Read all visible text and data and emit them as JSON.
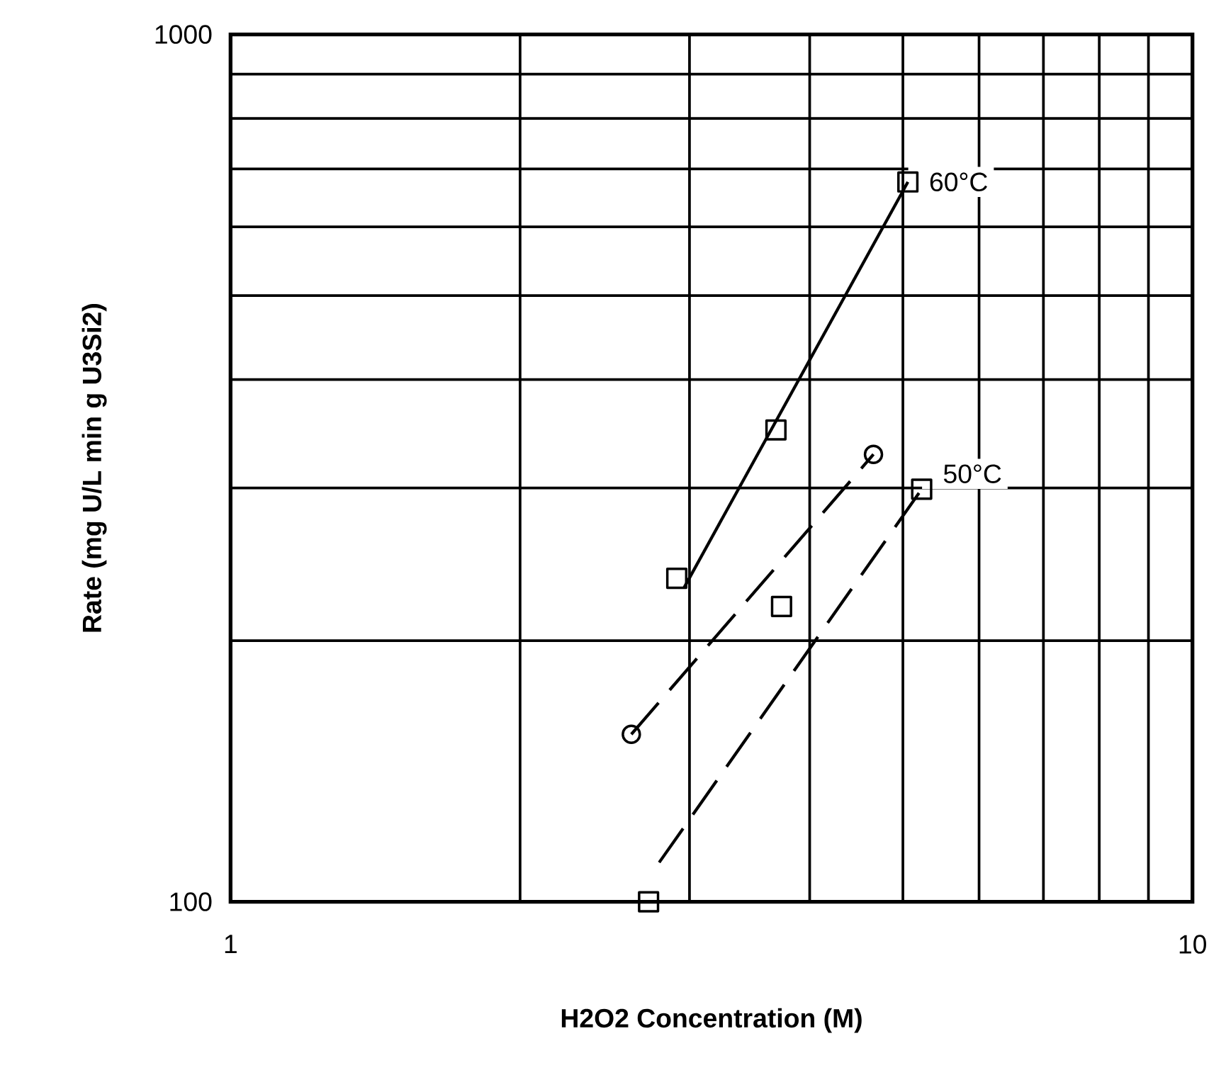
{
  "chart_data": {
    "type": "scatter",
    "log": "xy",
    "xlabel": "H2O2 Concentration (M)",
    "ylabel": "Rate  (mg  U/L  min  g  U3Si2)",
    "xlim": [
      1,
      10
    ],
    "ylim": [
      100,
      1000
    ],
    "xticks": [
      1,
      {
        "value": 2,
        "label": null
      },
      {
        "value": 3,
        "label": null
      },
      {
        "value": 4,
        "label": null
      },
      {
        "value": 5,
        "label": null
      },
      {
        "value": 6,
        "label": null
      },
      {
        "value": 7,
        "label": null
      },
      {
        "value": 8,
        "label": null
      },
      {
        "value": 9,
        "label": null
      },
      10
    ],
    "yticks": [
      100,
      {
        "value": 200,
        "label": null
      },
      {
        "value": 300,
        "label": null
      },
      {
        "value": 400,
        "label": null
      },
      {
        "value": 500,
        "label": null
      },
      {
        "value": 600,
        "label": null
      },
      {
        "value": 700,
        "label": null
      },
      {
        "value": 800,
        "label": null
      },
      {
        "value": 900,
        "label": null
      },
      1000
    ],
    "grid": true,
    "series": [
      {
        "name": "60°C",
        "marker": "square",
        "color": "#000000",
        "x": [
          2.91,
          3.69,
          5.06
        ],
        "values": [
          236,
          350,
          676
        ]
      },
      {
        "type": "line",
        "marker": "none",
        "line_style": "solid",
        "color": "#000000",
        "x": [
          2.96,
          5.06
        ],
        "values": [
          230,
          676
        ]
      },
      {
        "type": "line",
        "marker": "circle",
        "line_style": "dashed",
        "color": "#000000",
        "x": [
          2.61,
          4.66
        ],
        "values": [
          156,
          328
        ]
      },
      {
        "name": "50°C",
        "marker": "square",
        "color": "#000000",
        "x": [
          2.72,
          3.74,
          5.23
        ],
        "values": [
          100,
          219,
          299
        ]
      },
      {
        "type": "line",
        "marker": "none",
        "line_style": "dashed",
        "color": "#000000",
        "x": [
          2.79,
          5.23
        ],
        "values": [
          111,
          299
        ]
      }
    ]
  }
}
